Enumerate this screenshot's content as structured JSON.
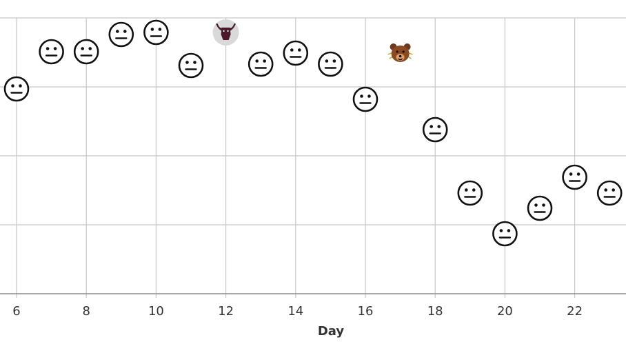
{
  "chart_data": {
    "type": "scatter",
    "xlabel": "Day",
    "ylabel": "",
    "xlim": [
      5.5,
      23.5
    ],
    "ylim": [
      0,
      4
    ],
    "x_ticks": [
      "6",
      "8",
      "10",
      "12",
      "14",
      "16",
      "18",
      "20",
      "22"
    ],
    "y_gridlines": [
      1,
      2,
      3,
      4
    ],
    "grid": true,
    "points": [
      {
        "x": 6,
        "y": 2.97,
        "marker": "neutral-face"
      },
      {
        "x": 7,
        "y": 3.51,
        "marker": "neutral-face"
      },
      {
        "x": 8,
        "y": 3.51,
        "marker": "neutral-face"
      },
      {
        "x": 9,
        "y": 3.76,
        "marker": "neutral-face"
      },
      {
        "x": 10,
        "y": 3.79,
        "marker": "neutral-face"
      },
      {
        "x": 11,
        "y": 3.31,
        "marker": "neutral-face"
      },
      {
        "x": 12,
        "y": 3.79,
        "marker": "bull"
      },
      {
        "x": 13,
        "y": 3.33,
        "marker": "neutral-face"
      },
      {
        "x": 14,
        "y": 3.49,
        "marker": "neutral-face"
      },
      {
        "x": 15,
        "y": 3.33,
        "marker": "neutral-face"
      },
      {
        "x": 16,
        "y": 2.82,
        "marker": "neutral-face"
      },
      {
        "x": 17,
        "y": 3.49,
        "marker": "bear"
      },
      {
        "x": 18,
        "y": 2.38,
        "marker": "neutral-face"
      },
      {
        "x": 19,
        "y": 1.46,
        "marker": "neutral-face"
      },
      {
        "x": 20,
        "y": 0.87,
        "marker": "neutral-face"
      },
      {
        "x": 21,
        "y": 1.24,
        "marker": "neutral-face"
      },
      {
        "x": 22,
        "y": 1.69,
        "marker": "neutral-face"
      },
      {
        "x": 23,
        "y": 1.46,
        "marker": "neutral-face"
      }
    ]
  }
}
